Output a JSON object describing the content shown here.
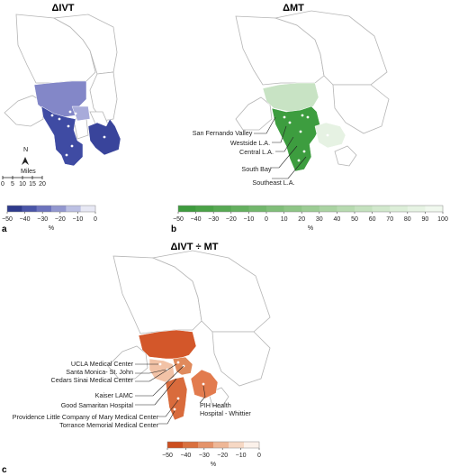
{
  "panels": [
    {
      "id": "a",
      "letter": "a",
      "title": "ΔIVT",
      "highlight_colors": [
        "#8387c8",
        "#a8abda",
        "#3f4ba3",
        "#39449b"
      ],
      "scale": {
        "ticks": [
          "−50",
          "−40",
          "−30",
          "−20",
          "−10",
          "0"
        ],
        "unit": "%",
        "range": [
          -50,
          0
        ],
        "colors": [
          "#2e3a8c",
          "#4a55a8",
          "#6c73bd",
          "#9297cf",
          "#bcc0e3",
          "#e7e8f4"
        ]
      },
      "compass": {
        "north": "N",
        "miles_label": "Miles",
        "miles_ticks": [
          "0",
          "5",
          "10",
          "15",
          "20"
        ]
      }
    },
    {
      "id": "b",
      "letter": "b",
      "title": "ΔMT",
      "highlight_colors": [
        "#c8e3c4",
        "#3d9d3f",
        "#e6f2e3"
      ],
      "labels": [
        "San Fernando Valley",
        "Westside L.A.",
        "Central L.A.",
        "South Bay",
        "Southeast L.A."
      ],
      "scale": {
        "ticks": [
          "−50",
          "−40",
          "−30",
          "−20",
          "−10",
          "0",
          "10",
          "20",
          "30",
          "40",
          "50",
          "60",
          "70",
          "80",
          "90",
          "100"
        ],
        "unit": "%",
        "range": [
          -50,
          100
        ],
        "colors": [
          "#3e9b3e",
          "#4aa247",
          "#57a953",
          "#64b05f",
          "#72b76c",
          "#80be79",
          "#8ec586",
          "#9ccc94",
          "#aad3a2",
          "#b7dab0",
          "#c4e1be",
          "#d1e8cc",
          "#dceed8",
          "#e6f3e3",
          "#f0f8ee"
        ]
      },
      "scale_note": ""
    },
    {
      "id": "c",
      "letter": "c",
      "title": "ΔIVT ÷ MT",
      "highlight_colors": [
        "#d3572a",
        "#f2c2a6",
        "#e08a5c",
        "#d96b3c",
        "#e27b4e"
      ],
      "labels": [
        "UCLA Medical Center",
        "Santa Monica- St. John",
        "Cedars Sinai Medical Center",
        "Kaiser LAMC",
        "Good Samaritan Hospital",
        "Providence Little Company of Mary Medical Center",
        "Torrance Memorial Medical Center",
        "PIH Health",
        "Hospital - Whittier"
      ],
      "scale": {
        "ticks": [
          "−50",
          "−40",
          "−30",
          "−20",
          "−10",
          "0"
        ],
        "unit": "%",
        "range": [
          -50,
          0
        ],
        "colors": [
          "#cc4e1f",
          "#d9703f",
          "#e4936a",
          "#eeb797",
          "#f6d8c4",
          "#fbf1ea"
        ]
      }
    }
  ]
}
